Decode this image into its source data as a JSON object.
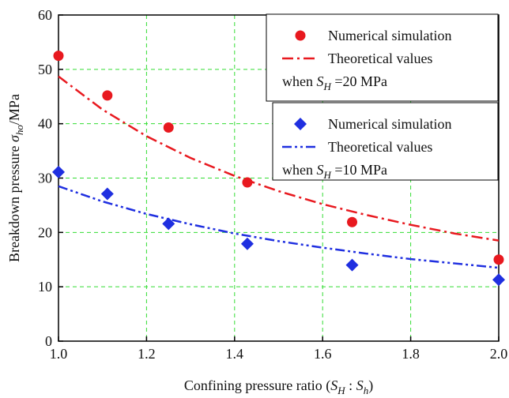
{
  "chart_data": {
    "type": "scatter",
    "x_label": [
      "Confining pressure ratio (",
      "S",
      "H",
      " : ",
      "S",
      "h",
      ")"
    ],
    "y_label": [
      "Breakdown pressure ",
      "σ",
      "ho",
      "/MPa"
    ],
    "xlim": [
      1,
      2
    ],
    "ylim": [
      0,
      60
    ],
    "xticks": [
      {
        "value": 1,
        "label": "1.0"
      },
      {
        "value": 1.2,
        "label": "1.2"
      },
      {
        "value": 1.4,
        "label": "1.4"
      },
      {
        "value": 1.6,
        "label": "1.6"
      },
      {
        "value": 1.8,
        "label": "1.8"
      },
      {
        "value": 2,
        "label": "2.0"
      }
    ],
    "yticks": [
      0,
      10,
      20,
      30,
      40,
      50,
      60
    ],
    "grid": true,
    "grid_color": "#33dd33",
    "legend_notes": [
      [
        "when ",
        "S",
        "H",
        " =20 MPa"
      ],
      [
        "when ",
        "S",
        "H",
        " =10 MPa"
      ]
    ],
    "series": [
      {
        "name": "Numerical simulation",
        "type": "scatter",
        "marker": "circle",
        "color": "#e8191f",
        "x": [
          1,
          1.111,
          1.25,
          1.429,
          1.667,
          2
        ],
        "values": [
          52.5,
          45.2,
          39.3,
          29.2,
          21.9,
          15
        ]
      },
      {
        "name": "Theoretical values",
        "type": "line",
        "dash": "dash-dot",
        "color": "#e8191f",
        "x": [
          1,
          1.1,
          1.2,
          1.3,
          1.4,
          1.5,
          1.6,
          1.7,
          1.8,
          1.9,
          2
        ],
        "values": [
          48.7,
          42.6,
          37.7,
          33.7,
          30.4,
          27.6,
          25.2,
          23.2,
          21.4,
          19.8,
          18.5
        ]
      },
      {
        "name": "Numerical simulation",
        "type": "scatter",
        "marker": "diamond",
        "color": "#1f2fe0",
        "x": [
          1,
          1.111,
          1.25,
          1.429,
          1.667,
          2
        ],
        "values": [
          31.1,
          27.1,
          21.6,
          17.9,
          14,
          11.3
        ]
      },
      {
        "name": "Theoretical values",
        "type": "line",
        "dash": "dash-dot-dot",
        "color": "#1f2fe0",
        "x": [
          1,
          1.1,
          1.2,
          1.3,
          1.4,
          1.5,
          1.6,
          1.7,
          1.8,
          1.9,
          2
        ],
        "values": [
          28.5,
          25.7,
          23.4,
          21.5,
          19.8,
          18.4,
          17.2,
          16.1,
          15.1,
          14.3,
          13.5
        ]
      }
    ]
  }
}
